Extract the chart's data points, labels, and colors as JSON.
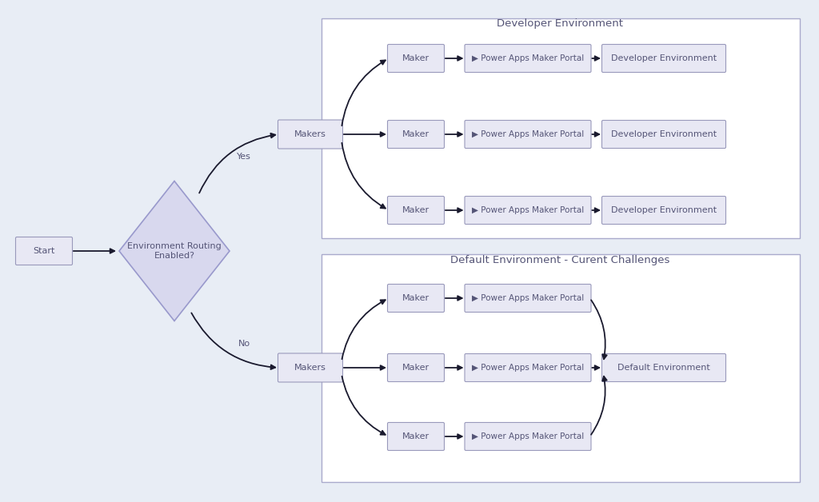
{
  "bg_color": "#e8edf5",
  "panel_color": "#ffffff",
  "box_fill": "#e8e8f4",
  "box_edge": "#9999bb",
  "diamond_fill": "#d8d8ee",
  "diamond_edge": "#9999cc",
  "text_color": "#555577",
  "arrow_color": "#1a1a2e",
  "title_dev": "Developer Environment",
  "title_default": "Default Environment - Curent Challenges",
  "label_start": "Start",
  "label_diamond": "Environment Routing\nEnabled?",
  "label_yes": "Yes",
  "label_no": "No",
  "label_makers": "Makers",
  "label_maker": "Maker",
  "label_portal": "▶ Power Apps Maker Portal",
  "label_dev_env": "Developer Environment",
  "label_default_env": "Default Environment",
  "font_size_title": 9.5,
  "font_size_box": 8,
  "font_size_label": 8
}
